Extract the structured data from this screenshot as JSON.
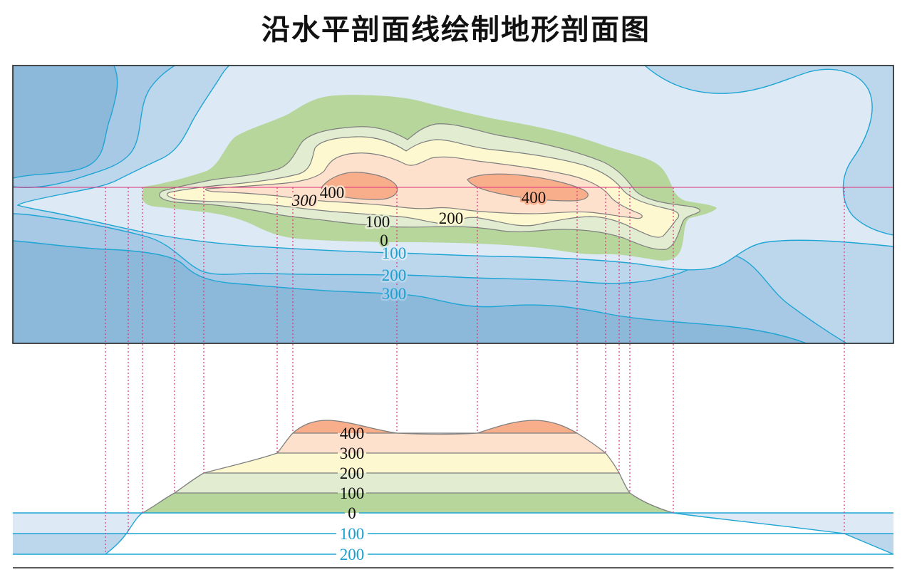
{
  "title": "沿水平剖面线绘制地形剖面图",
  "map": {
    "land_labels": {
      "c300": "300",
      "c400_west": "400",
      "c400_east": "400",
      "c100": "100",
      "c200": "200",
      "c0": "0"
    },
    "sea_labels": {
      "d100": "100",
      "d200": "200",
      "d300": "300"
    }
  },
  "profile": {
    "elevation_labels": {
      "e400": "400",
      "e300": "300",
      "e200": "200",
      "e100": "100",
      "e0": "0"
    },
    "depth_labels": {
      "d100": "100",
      "d200": "200"
    }
  },
  "colors": {
    "sea_over_300": "#8cb8da",
    "sea_200_300": "#a8c9e5",
    "sea_100_200": "#bcd6ec",
    "sea_0_100": "#dde9f5",
    "land_0_100": "#b6d69b",
    "land_100_200": "#e1ecd1",
    "land_200_300": "#fdf8d0",
    "land_300_400": "#fde1cd",
    "land_over_400": "#f8ae8a",
    "sea_contour": "#1ea5d4",
    "land_contour": "#7f7f7f",
    "section_line": "#e0307a"
  }
}
